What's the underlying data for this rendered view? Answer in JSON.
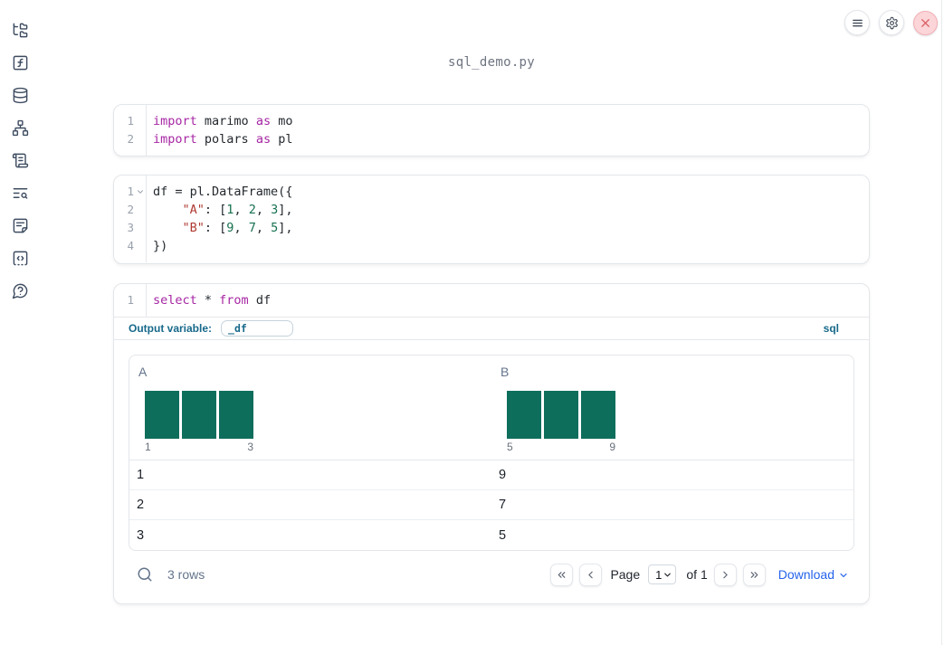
{
  "window": {
    "title": "sql_demo.py"
  },
  "colors": {
    "histogram_bar": "#0e6e5c",
    "syntax_keyword": "#a626a4",
    "syntax_string": "#b03a32",
    "syntax_number": "#177150",
    "accent_label": "#17698a",
    "download_link": "#2563eb",
    "close_button_bg": "#fbd5d8"
  },
  "sidebar": {
    "items": [
      {
        "icon": "file-tree-icon"
      },
      {
        "icon": "function-square-icon"
      },
      {
        "icon": "database-icon"
      },
      {
        "icon": "dependency-graph-icon"
      },
      {
        "icon": "scroll-icon"
      },
      {
        "icon": "text-search-icon"
      },
      {
        "icon": "document-icon"
      },
      {
        "icon": "snippets-icon"
      },
      {
        "icon": "help-chat-icon"
      }
    ]
  },
  "top_controls": {
    "menu_icon": "hamburger-menu-icon",
    "settings_icon": "gear-icon",
    "close_icon": "close-x-icon"
  },
  "cells": [
    {
      "type": "python",
      "lines": [
        {
          "num": "1",
          "tokens": [
            [
              "kw",
              "import"
            ],
            [
              "pl",
              " marimo "
            ],
            [
              "kw",
              "as"
            ],
            [
              "pl",
              " mo"
            ]
          ]
        },
        {
          "num": "2",
          "tokens": [
            [
              "kw",
              "import"
            ],
            [
              "pl",
              " polars "
            ],
            [
              "kw",
              "as"
            ],
            [
              "pl",
              " pl"
            ]
          ]
        }
      ]
    },
    {
      "type": "python",
      "lines": [
        {
          "num": "1",
          "fold": true,
          "tokens": [
            [
              "pl",
              "df = pl.DataFrame({"
            ]
          ]
        },
        {
          "num": "2",
          "tokens": [
            [
              "pl",
              "    "
            ],
            [
              "str",
              "\"A\""
            ],
            [
              "pl",
              ": ["
            ],
            [
              "num",
              "1"
            ],
            [
              "pl",
              ", "
            ],
            [
              "num",
              "2"
            ],
            [
              "pl",
              ", "
            ],
            [
              "num",
              "3"
            ],
            [
              "pl",
              "],"
            ]
          ]
        },
        {
          "num": "3",
          "tokens": [
            [
              "pl",
              "    "
            ],
            [
              "str",
              "\"B\""
            ],
            [
              "pl",
              ": ["
            ],
            [
              "num",
              "9"
            ],
            [
              "pl",
              ", "
            ],
            [
              "num",
              "7"
            ],
            [
              "pl",
              ", "
            ],
            [
              "num",
              "5"
            ],
            [
              "pl",
              "],"
            ]
          ]
        },
        {
          "num": "4",
          "tokens": [
            [
              "pl",
              "})"
            ]
          ]
        }
      ]
    },
    {
      "type": "sql",
      "lines": [
        {
          "num": "1",
          "tokens": [
            [
              "kw",
              "select"
            ],
            [
              "pl",
              " * "
            ],
            [
              "kw",
              "from"
            ],
            [
              "pl",
              " df"
            ]
          ]
        }
      ],
      "output_variable_label": "Output variable:",
      "output_variable_value": "_df",
      "language_label": "sql"
    }
  ],
  "table": {
    "columns": [
      {
        "label": "A",
        "hist_min": "1",
        "hist_max": "3",
        "bar_heights": [
          1,
          1,
          1
        ]
      },
      {
        "label": "B",
        "hist_min": "5",
        "hist_max": "9",
        "bar_heights": [
          1,
          1,
          1
        ]
      }
    ],
    "rows": [
      [
        "1",
        "9"
      ],
      [
        "2",
        "7"
      ],
      [
        "3",
        "5"
      ]
    ],
    "footer": {
      "row_count": "3 rows",
      "page_label": "Page",
      "page_value": "1",
      "of_label": "of 1",
      "download_label": "Download"
    }
  }
}
